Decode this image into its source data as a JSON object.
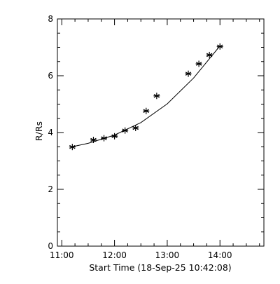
{
  "chart_data": {
    "type": "scatter",
    "title": "",
    "xlabel": "Start Time (18-Sep-25 10:42:08)",
    "ylabel": "R/Rs",
    "x_axis": {
      "range": [
        "10:55",
        "14:50"
      ],
      "tick_labels": [
        "11:00",
        "12:00",
        "13:00",
        "14:00"
      ]
    },
    "y_axis": {
      "range": [
        0,
        8
      ],
      "tick_labels": [
        "0",
        "2",
        "4",
        "6",
        "8"
      ]
    },
    "grid": false,
    "legend": "none",
    "marker": "asterisk",
    "series": [
      {
        "x": [
          "11:12",
          "11:36",
          "11:48",
          "12:00",
          "12:12",
          "12:24",
          "12:36",
          "12:48",
          "13:24",
          "13:36",
          "13:48",
          "14:00"
        ],
        "y": [
          3.49,
          3.74,
          3.8,
          3.87,
          4.07,
          4.16,
          4.76,
          5.29,
          6.07,
          6.42,
          6.73,
          7.03
        ]
      }
    ],
    "fit_curve": {
      "x": [
        "11:12",
        "11:30",
        "12:00",
        "12:30",
        "13:00",
        "13:30",
        "14:00"
      ],
      "y": [
        3.5,
        3.62,
        3.91,
        4.35,
        5.01,
        5.92,
        7.05
      ]
    },
    "colors": {
      "background": "#ffffff",
      "axes": "#000000",
      "markers": "#000000",
      "fit_line": "#000000"
    }
  }
}
